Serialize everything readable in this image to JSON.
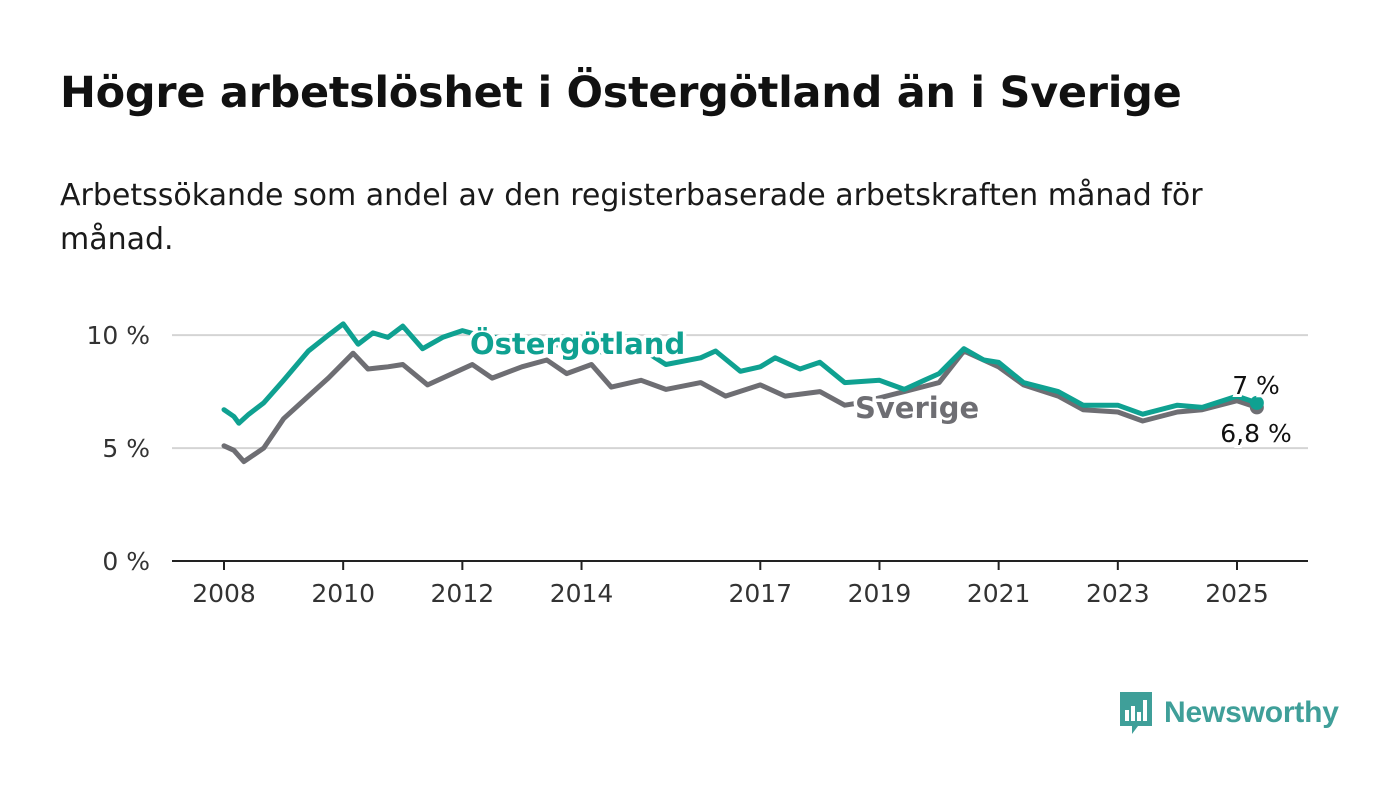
{
  "title": "Högre arbetslöshet i Östergötland än i Sverige",
  "subtitle": "Arbetssökande som andel av den registerbaserade arbetskraften månad för månad.",
  "logo": {
    "text": "Newsworthy",
    "icon": "bar-chart-speech-bubble-icon",
    "color": "#3f9f99"
  },
  "chart_data": {
    "type": "line",
    "x_type": "date",
    "ylim": [
      0,
      12
    ],
    "y_ticks": [
      {
        "value": 0,
        "label": "0 %"
      },
      {
        "value": 5,
        "label": "5 %"
      },
      {
        "value": 10,
        "label": "10 %"
      }
    ],
    "x_ticks": [
      {
        "date": "2008-01-01",
        "label": "2008"
      },
      {
        "date": "2010-01-01",
        "label": "2010"
      },
      {
        "date": "2012-01-01",
        "label": "2012"
      },
      {
        "date": "2014-01-01",
        "label": "2014"
      },
      {
        "date": "2017-01-01",
        "label": "2017"
      },
      {
        "date": "2019-01-01",
        "label": "2019"
      },
      {
        "date": "2021-01-01",
        "label": "2021"
      },
      {
        "date": "2023-01-01",
        "label": "2023"
      },
      {
        "date": "2025-01-01",
        "label": "2025"
      }
    ],
    "grid": true,
    "series": [
      {
        "name": "Östergötland",
        "color": "#0fa191",
        "end_label": "7 %",
        "points": [
          [
            "2008-01",
            6.7
          ],
          [
            "2008-03",
            6.4
          ],
          [
            "2008-04",
            6.1
          ],
          [
            "2008-06",
            6.5
          ],
          [
            "2008-09",
            7.0
          ],
          [
            "2009-01",
            8.0
          ],
          [
            "2009-06",
            9.3
          ],
          [
            "2009-10",
            10.0
          ],
          [
            "2010-01",
            10.5
          ],
          [
            "2010-04",
            9.6
          ],
          [
            "2010-07",
            10.1
          ],
          [
            "2010-10",
            9.9
          ],
          [
            "2011-01",
            10.4
          ],
          [
            "2011-05",
            9.4
          ],
          [
            "2011-09",
            9.9
          ],
          [
            "2012-01",
            10.2
          ],
          [
            "2012-06",
            9.9
          ],
          [
            "2013-01",
            9.9
          ],
          [
            "2013-06",
            9.6
          ],
          [
            "2014-01",
            9.5
          ],
          [
            "2014-06",
            9.2
          ],
          [
            "2015-01",
            9.4
          ],
          [
            "2015-06",
            8.7
          ],
          [
            "2016-01",
            9.0
          ],
          [
            "2016-04",
            9.3
          ],
          [
            "2016-09",
            8.4
          ],
          [
            "2017-01",
            8.6
          ],
          [
            "2017-04",
            9.0
          ],
          [
            "2017-09",
            8.5
          ],
          [
            "2018-01",
            8.8
          ],
          [
            "2018-06",
            7.9
          ],
          [
            "2019-01",
            8.0
          ],
          [
            "2019-06",
            7.6
          ],
          [
            "2019-10",
            8.0
          ],
          [
            "2020-01",
            8.3
          ],
          [
            "2020-06",
            9.4
          ],
          [
            "2020-10",
            8.9
          ],
          [
            "2021-01",
            8.8
          ],
          [
            "2021-06",
            7.9
          ],
          [
            "2022-01",
            7.5
          ],
          [
            "2022-06",
            6.9
          ],
          [
            "2023-01",
            6.9
          ],
          [
            "2023-06",
            6.5
          ],
          [
            "2024-01",
            6.9
          ],
          [
            "2024-06",
            6.8
          ],
          [
            "2025-01",
            7.3
          ],
          [
            "2025-05",
            7.0
          ]
        ]
      },
      {
        "name": "Sverige",
        "color": "#6e6e73",
        "end_label": "6,8 %",
        "points": [
          [
            "2008-01",
            5.1
          ],
          [
            "2008-03",
            4.9
          ],
          [
            "2008-05",
            4.4
          ],
          [
            "2008-09",
            5.0
          ],
          [
            "2009-01",
            6.3
          ],
          [
            "2009-06",
            7.3
          ],
          [
            "2009-10",
            8.1
          ],
          [
            "2010-03",
            9.2
          ],
          [
            "2010-06",
            8.5
          ],
          [
            "2010-10",
            8.6
          ],
          [
            "2011-01",
            8.7
          ],
          [
            "2011-06",
            7.8
          ],
          [
            "2011-10",
            8.2
          ],
          [
            "2012-03",
            8.7
          ],
          [
            "2012-07",
            8.1
          ],
          [
            "2013-01",
            8.6
          ],
          [
            "2013-06",
            8.9
          ],
          [
            "2013-10",
            8.3
          ],
          [
            "2014-03",
            8.7
          ],
          [
            "2014-07",
            7.7
          ],
          [
            "2015-01",
            8.0
          ],
          [
            "2015-06",
            7.6
          ],
          [
            "2016-01",
            7.9
          ],
          [
            "2016-06",
            7.3
          ],
          [
            "2017-01",
            7.8
          ],
          [
            "2017-06",
            7.3
          ],
          [
            "2018-01",
            7.5
          ],
          [
            "2018-06",
            6.9
          ],
          [
            "2018-09",
            7.0
          ],
          [
            "2019-06",
            7.5
          ],
          [
            "2020-01",
            7.9
          ],
          [
            "2020-06",
            9.3
          ],
          [
            "2021-01",
            8.6
          ],
          [
            "2021-06",
            7.8
          ],
          [
            "2022-01",
            7.3
          ],
          [
            "2022-06",
            6.7
          ],
          [
            "2023-01",
            6.6
          ],
          [
            "2023-06",
            6.2
          ],
          [
            "2024-01",
            6.6
          ],
          [
            "2024-06",
            6.7
          ],
          [
            "2025-01",
            7.1
          ],
          [
            "2025-05",
            6.8
          ]
        ]
      }
    ]
  }
}
